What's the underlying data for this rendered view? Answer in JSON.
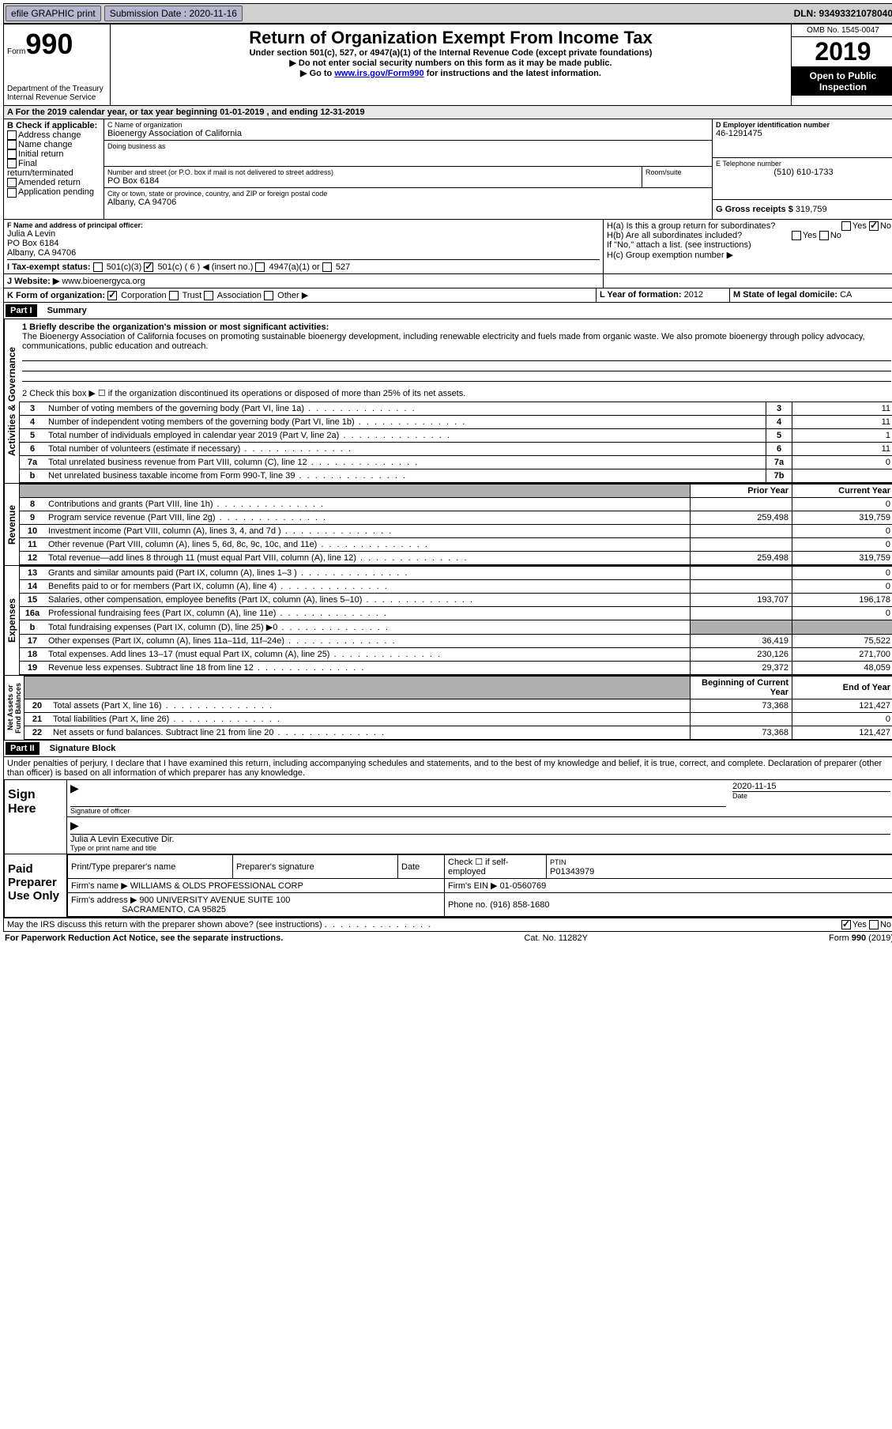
{
  "topbar": {
    "efile": "efile GRAPHIC print",
    "sub_label": "Submission Date :",
    "sub_date": "2020-11-16",
    "dln": "DLN: 93493321078040"
  },
  "header": {
    "form_word": "Form",
    "form_no": "990",
    "dept": "Department of the Treasury Internal Revenue Service",
    "title": "Return of Organization Exempt From Income Tax",
    "subtitle": "Under section 501(c), 527, or 4947(a)(1) of the Internal Revenue Code (except private foundations)",
    "note1": "▶ Do not enter social security numbers on this form as it may be made public.",
    "note2_pre": "▶ Go to ",
    "note2_link": "www.irs.gov/Form990",
    "note2_post": " for instructions and the latest information.",
    "omb": "OMB No. 1545-0047",
    "year": "2019",
    "inspect": "Open to Public Inspection"
  },
  "lineA": "A For the 2019 calendar year, or tax year beginning 01-01-2019    , and ending 12-31-2019",
  "boxB": {
    "label": "B Check if applicable:",
    "items": [
      "Address change",
      "Name change",
      "Initial return",
      "Final return/terminated",
      "Amended return",
      "Application pending"
    ]
  },
  "boxC": {
    "label": "C Name of organization",
    "name": "Bioenergy Association of California",
    "dba": "Doing business as",
    "addr_label": "Number and street (or P.O. box if mail is not delivered to street address)",
    "room": "Room/suite",
    "addr": "PO Box 6184",
    "city_label": "City or town, state or province, country, and ZIP or foreign postal code",
    "city": "Albany, CA  94706"
  },
  "boxD": {
    "label": "D Employer identification number",
    "value": "46-1291475"
  },
  "boxE": {
    "label": "E Telephone number",
    "value": "(510) 610-1733"
  },
  "boxG": {
    "label": "G Gross receipts $",
    "value": "319,759"
  },
  "boxF": {
    "label": "F Name and address of principal officer:",
    "name": "Julia A Levin",
    "addr1": "PO Box 6184",
    "addr2": "Albany, CA  94706"
  },
  "boxH": {
    "a": "H(a)  Is this a group return for subordinates?",
    "b": "H(b)  Are all subordinates included?",
    "note": "If \"No,\" attach a list. (see instructions)",
    "c": "H(c)  Group exemption number ▶"
  },
  "boxI": {
    "label": "I    Tax-exempt status:",
    "opts": [
      "501(c)(3)",
      "501(c) ( 6 ) ◀ (insert no.)",
      "4947(a)(1) or",
      "527"
    ]
  },
  "boxJ": {
    "label": "J   Website: ▶",
    "value": "www.bioenergyca.org"
  },
  "boxK": {
    "label": "K Form of organization:",
    "opts": [
      "Corporation",
      "Trust",
      "Association",
      "Other ▶"
    ]
  },
  "boxL": {
    "label": "L Year of formation:",
    "value": "2012"
  },
  "boxM": {
    "label": "M State of legal domicile:",
    "value": "CA"
  },
  "part1": {
    "header": "Part I",
    "title": "Summary",
    "line1_label": "1   Briefly describe the organization's mission or most significant activities:",
    "line1_text": "The Bioenergy Association of California focuses on promoting sustainable bioenergy development, including renewable electricity and fuels made from organic waste. We also promote bioenergy through policy advocacy, communications, public education and outreach.",
    "line2": "2     Check this box ▶ ☐  if the organization discontinued its operations or disposed of more than 25% of its net assets.",
    "gov_lines": [
      {
        "no": "3",
        "desc": "Number of voting members of the governing body (Part VI, line 1a)",
        "box": "3",
        "val": "11"
      },
      {
        "no": "4",
        "desc": "Number of independent voting members of the governing body (Part VI, line 1b)",
        "box": "4",
        "val": "11"
      },
      {
        "no": "5",
        "desc": "Total number of individuals employed in calendar year 2019 (Part V, line 2a)",
        "box": "5",
        "val": "1"
      },
      {
        "no": "6",
        "desc": "Total number of volunteers (estimate if necessary)",
        "box": "6",
        "val": "11"
      },
      {
        "no": "7a",
        "desc": "Total unrelated business revenue from Part VIII, column (C), line 12",
        "box": "7a",
        "val": "0"
      },
      {
        "no": "b",
        "desc": "Net unrelated business taxable income from Form 990-T, line 39",
        "box": "7b",
        "val": ""
      }
    ],
    "col_prior": "Prior Year",
    "col_current": "Current Year",
    "revenue": [
      {
        "no": "8",
        "desc": "Contributions and grants (Part VIII, line 1h)",
        "prior": "",
        "curr": "0"
      },
      {
        "no": "9",
        "desc": "Program service revenue (Part VIII, line 2g)",
        "prior": "259,498",
        "curr": "319,759"
      },
      {
        "no": "10",
        "desc": "Investment income (Part VIII, column (A), lines 3, 4, and 7d )",
        "prior": "",
        "curr": "0"
      },
      {
        "no": "11",
        "desc": "Other revenue (Part VIII, column (A), lines 5, 6d, 8c, 9c, 10c, and 11e)",
        "prior": "",
        "curr": "0"
      },
      {
        "no": "12",
        "desc": "Total revenue—add lines 8 through 11 (must equal Part VIII, column (A), line 12)",
        "prior": "259,498",
        "curr": "319,759"
      }
    ],
    "expenses": [
      {
        "no": "13",
        "desc": "Grants and similar amounts paid (Part IX, column (A), lines 1–3 )",
        "prior": "",
        "curr": "0"
      },
      {
        "no": "14",
        "desc": "Benefits paid to or for members (Part IX, column (A), line 4)",
        "prior": "",
        "curr": "0"
      },
      {
        "no": "15",
        "desc": "Salaries, other compensation, employee benefits (Part IX, column (A), lines 5–10)",
        "prior": "193,707",
        "curr": "196,178"
      },
      {
        "no": "16a",
        "desc": "Professional fundraising fees (Part IX, column (A), line 11e)",
        "prior": "",
        "curr": "0"
      },
      {
        "no": "b",
        "desc": "Total fundraising expenses (Part IX, column (D), line 25) ▶0",
        "prior": "shaded",
        "curr": "shaded"
      },
      {
        "no": "17",
        "desc": "Other expenses (Part IX, column (A), lines 11a–11d, 11f–24e)",
        "prior": "36,419",
        "curr": "75,522"
      },
      {
        "no": "18",
        "desc": "Total expenses. Add lines 13–17 (must equal Part IX, column (A), line 25)",
        "prior": "230,126",
        "curr": "271,700"
      },
      {
        "no": "19",
        "desc": "Revenue less expenses. Subtract line 18 from line 12",
        "prior": "29,372",
        "curr": "48,059"
      }
    ],
    "col_begin": "Beginning of Current Year",
    "col_end": "End of Year",
    "netassets": [
      {
        "no": "20",
        "desc": "Total assets (Part X, line 16)",
        "prior": "73,368",
        "curr": "121,427"
      },
      {
        "no": "21",
        "desc": "Total liabilities (Part X, line 26)",
        "prior": "",
        "curr": "0"
      },
      {
        "no": "22",
        "desc": "Net assets or fund balances. Subtract line 21 from line 20",
        "prior": "73,368",
        "curr": "121,427"
      }
    ]
  },
  "part2": {
    "header": "Part II",
    "title": "Signature Block",
    "declaration": "Under penalties of perjury, I declare that I have examined this return, including accompanying schedules and statements, and to the best of my knowledge and belief, it is true, correct, and complete. Declaration of preparer (other than officer) is based on all information of which preparer has any knowledge.",
    "sign_here": "Sign Here",
    "sig_officer": "Signature of officer",
    "sig_date": "2020-11-15",
    "date_label": "Date",
    "officer_name": "Julia A Levin  Executive Dir.",
    "officer_label": "Type or print name and title",
    "paid_prep": "Paid Preparer Use Only",
    "prep_name_label": "Print/Type preparer's name",
    "prep_sig_label": "Preparer's signature",
    "check_self": "Check ☐ if self-employed",
    "ptin_label": "PTIN",
    "ptin": "P01343979",
    "firm_name_label": "Firm's name    ▶",
    "firm_name": "WILLIAMS & OLDS PROFESSIONAL CORP",
    "firm_ein_label": "Firm's EIN ▶",
    "firm_ein": "01-0560769",
    "firm_addr_label": "Firm's address ▶",
    "firm_addr1": "900 UNIVERSITY AVENUE SUITE 100",
    "firm_addr2": "SACRAMENTO, CA  95825",
    "phone_label": "Phone no.",
    "phone": "(916) 858-1680",
    "discuss": "May the IRS discuss this return with the preparer shown above? (see instructions)",
    "yes": "Yes",
    "no": "No"
  },
  "footer": {
    "left": "For Paperwork Reduction Act Notice, see the separate instructions.",
    "mid": "Cat. No. 11282Y",
    "right": "Form 990 (2019)"
  }
}
